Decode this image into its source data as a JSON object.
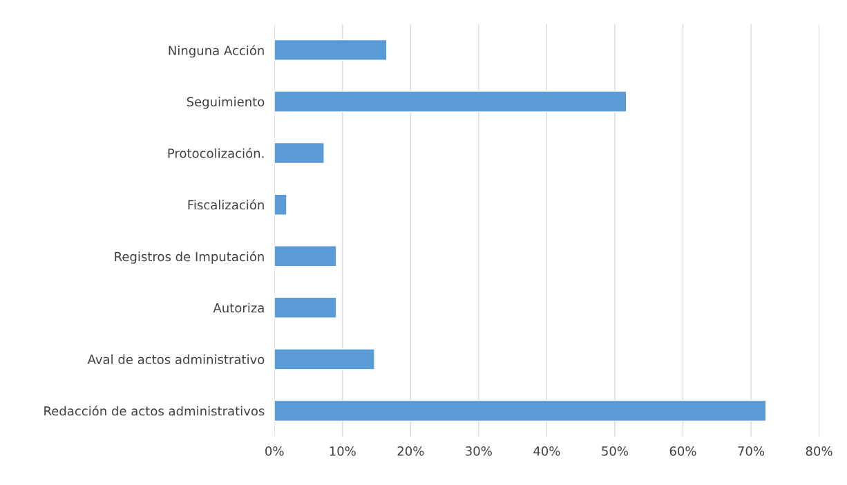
{
  "chart_data": {
    "type": "bar",
    "orientation": "horizontal",
    "categories": [
      "Ninguna Acción",
      "Seguimiento",
      "Protocolización.",
      "Fiscalización",
      "Registros de Imputación",
      "Autoriza",
      "Aval de actos administrativo",
      "Redacción de actos administrativos"
    ],
    "values": [
      16.5,
      51.7,
      7.3,
      1.8,
      9.1,
      9.1,
      14.7,
      72.2
    ],
    "color": "#5b9bd5",
    "xlim": [
      0,
      80
    ],
    "xticks": [
      {
        "value": 0,
        "label": "0%"
      },
      {
        "value": 10,
        "label": "10%"
      },
      {
        "value": 20,
        "label": "20%"
      },
      {
        "value": 30,
        "label": "30%"
      },
      {
        "value": 40,
        "label": "40%"
      },
      {
        "value": 50,
        "label": "50%"
      },
      {
        "value": 60,
        "label": "60%"
      },
      {
        "value": 70,
        "label": "70%"
      },
      {
        "value": 80,
        "label": "80%"
      }
    ],
    "grid": "x"
  }
}
